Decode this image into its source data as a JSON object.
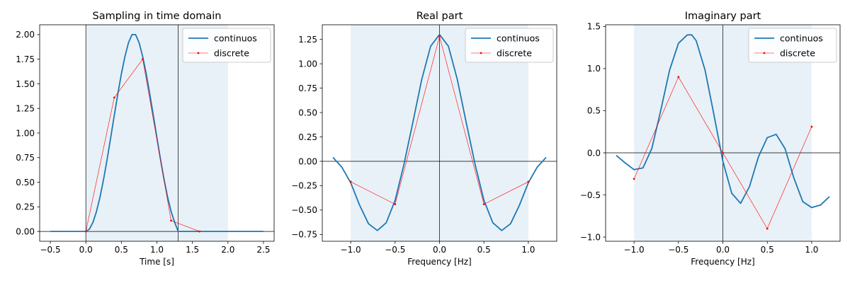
{
  "chart_data": [
    {
      "type": "line",
      "title": "Sampling in time domain",
      "xlabel": "Time [s]",
      "ylabel": "",
      "xlim": [
        -0.65,
        2.65
      ],
      "ylim": [
        -0.1,
        2.1
      ],
      "xticks": [
        -0.5,
        0.0,
        0.5,
        1.0,
        1.5,
        2.0,
        2.5
      ],
      "xtick_labels": [
        "−0.5",
        "0.0",
        "0.5",
        "1.0",
        "1.5",
        "2.0",
        "2.5"
      ],
      "yticks": [
        0.0,
        0.25,
        0.5,
        0.75,
        1.0,
        1.25,
        1.5,
        1.75,
        2.0
      ],
      "ytick_labels": [
        "0.00",
        "0.25",
        "0.50",
        "0.75",
        "1.00",
        "1.25",
        "1.50",
        "1.75",
        "2.00"
      ],
      "shaded_span": [
        0.0,
        2.0
      ],
      "vlines": [
        0.0,
        1.3
      ],
      "hlines": [
        0.0
      ],
      "legend_position": "top-right",
      "series": [
        {
          "name": "continuos",
          "color": "#1f77b4",
          "x": [
            -0.5,
            -0.25,
            0.0,
            0.05,
            0.1,
            0.15,
            0.2,
            0.25,
            0.3,
            0.35,
            0.4,
            0.45,
            0.5,
            0.55,
            0.6,
            0.65,
            0.7,
            0.75,
            0.8,
            0.85,
            0.9,
            0.95,
            1.0,
            1.05,
            1.1,
            1.15,
            1.2,
            1.25,
            1.3,
            1.5,
            2.0,
            2.5
          ],
          "y": [
            0.0,
            0.0,
            0.0,
            0.023,
            0.092,
            0.203,
            0.351,
            0.531,
            0.735,
            0.954,
            1.178,
            1.397,
            1.601,
            1.777,
            1.917,
            2.0,
            2.0,
            1.917,
            1.777,
            1.601,
            1.397,
            1.178,
            0.954,
            0.735,
            0.531,
            0.351,
            0.203,
            0.092,
            0.0,
            0.0,
            0.0,
            0.0
          ]
        },
        {
          "name": "discrete",
          "color": "#ff0000",
          "x": [
            0.0,
            0.4,
            0.8,
            1.2,
            1.6
          ],
          "y": [
            0.0,
            1.36,
            1.75,
            0.11,
            0.0
          ]
        }
      ]
    },
    {
      "type": "line",
      "title": "Real part",
      "xlabel": "Frequency [Hz]",
      "ylabel": "",
      "xlim": [
        -1.32,
        1.32
      ],
      "ylim": [
        -0.82,
        1.4
      ],
      "xticks": [
        -1.0,
        -0.5,
        0.0,
        0.5,
        1.0
      ],
      "xtick_labels": [
        "−1.0",
        "−0.5",
        "0.0",
        "0.5",
        "1.0"
      ],
      "yticks": [
        -0.75,
        -0.5,
        -0.25,
        0.0,
        0.25,
        0.5,
        0.75,
        1.0,
        1.25
      ],
      "ytick_labels": [
        "−0.75",
        "−0.50",
        "−0.25",
        "0.00",
        "0.25",
        "0.50",
        "0.75",
        "1.00",
        "1.25"
      ],
      "shaded_span": [
        -1.0,
        1.0
      ],
      "vlines": [
        0.0
      ],
      "hlines": [
        0.0
      ],
      "legend_position": "top-right",
      "series": [
        {
          "name": "continuos",
          "color": "#1f77b4",
          "x": [
            -1.2,
            -1.1,
            -1.0,
            -0.9,
            -0.8,
            -0.7,
            -0.6,
            -0.5,
            -0.4,
            -0.3,
            -0.2,
            -0.1,
            0.0,
            0.1,
            0.2,
            0.3,
            0.4,
            0.5,
            0.6,
            0.7,
            0.8,
            0.9,
            1.0,
            1.1,
            1.2
          ],
          "y": [
            0.04,
            -0.06,
            -0.22,
            -0.45,
            -0.64,
            -0.71,
            -0.63,
            -0.4,
            -0.03,
            0.4,
            0.84,
            1.18,
            1.3,
            1.18,
            0.84,
            0.4,
            -0.03,
            -0.4,
            -0.63,
            -0.71,
            -0.64,
            -0.45,
            -0.22,
            -0.06,
            0.04
          ]
        },
        {
          "name": "discrete",
          "color": "#ff0000",
          "x": [
            -1.0,
            -0.5,
            0.0,
            0.5,
            1.0
          ],
          "y": [
            -0.21,
            -0.44,
            1.28,
            -0.44,
            -0.21
          ]
        }
      ]
    },
    {
      "type": "line",
      "title": "Imaginary part",
      "xlabel": "Frequency [Hz]",
      "ylabel": "",
      "xlim": [
        -1.32,
        1.32
      ],
      "ylim": [
        -1.05,
        1.52
      ],
      "xticks": [
        -1.0,
        -0.5,
        0.0,
        0.5,
        1.0
      ],
      "xtick_labels": [
        "−1.0",
        "−0.5",
        "0.0",
        "0.5",
        "1.0"
      ],
      "yticks": [
        -1.0,
        -0.5,
        0.0,
        0.5,
        1.0,
        1.5
      ],
      "ytick_labels": [
        "−1.0",
        "−0.5",
        "0.0",
        "0.5",
        "1.0",
        "1.5"
      ],
      "shaded_span": [
        -1.0,
        1.0
      ],
      "vlines": [
        0.0
      ],
      "hlines": [
        0.0
      ],
      "legend_position": "top-right",
      "series": [
        {
          "name": "continuos",
          "color": "#1f77b4",
          "x": [
            -1.2,
            -1.1,
            -1.0,
            -0.9,
            -0.8,
            -0.7,
            -0.6,
            -0.5,
            -0.4,
            -0.35,
            -0.3,
            -0.2,
            -0.1,
            0.0,
            0.1,
            0.2,
            0.3,
            0.4,
            0.5,
            0.6,
            0.7,
            0.8,
            0.9,
            1.0,
            1.1,
            1.2
          ],
          "y": [
            -0.03,
            -0.12,
            -0.2,
            -0.18,
            0.05,
            0.5,
            0.98,
            1.3,
            1.4,
            1.4,
            1.33,
            0.98,
            0.45,
            -0.1,
            -0.48,
            -0.6,
            -0.4,
            -0.05,
            0.18,
            0.22,
            0.05,
            -0.3,
            -0.58,
            -0.65,
            -0.62,
            -0.52
          ]
        },
        {
          "name": "discrete",
          "color": "#ff0000",
          "x": [
            -1.0,
            -0.5,
            0.0,
            0.5,
            1.0
          ],
          "y": [
            -0.31,
            0.9,
            0.0,
            -0.9,
            0.31
          ]
        }
      ]
    }
  ]
}
